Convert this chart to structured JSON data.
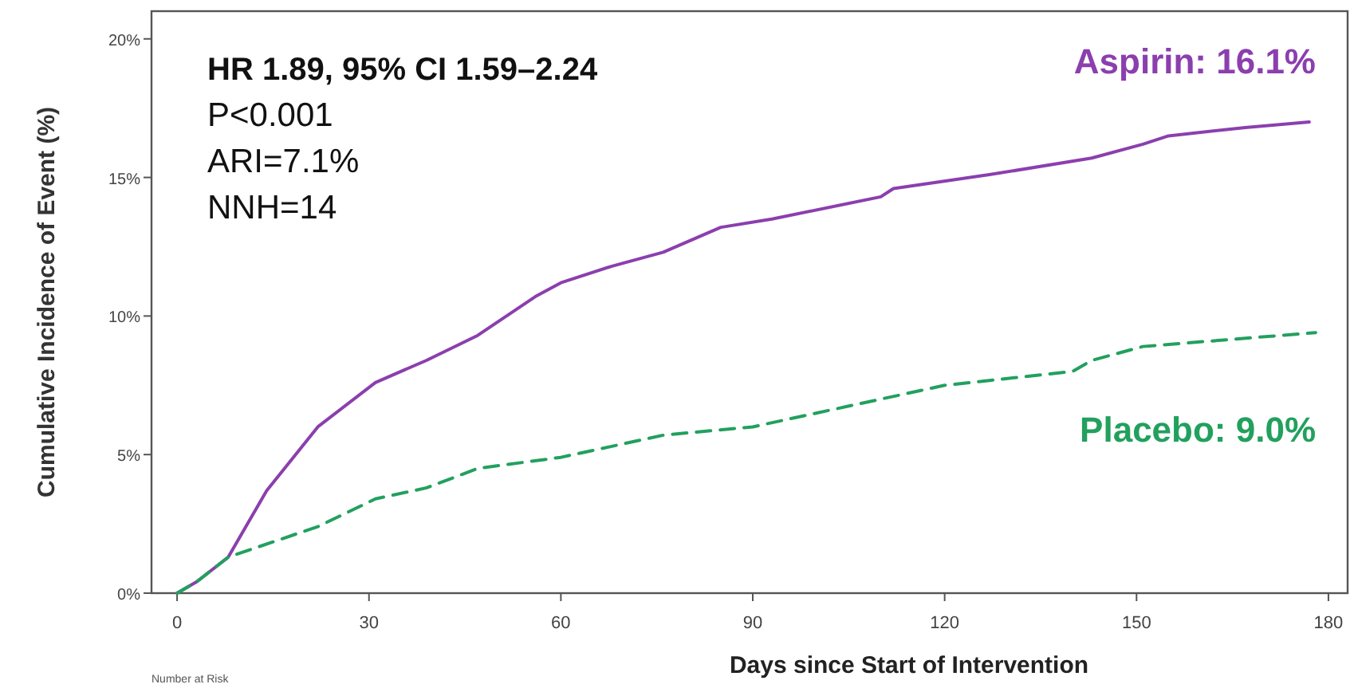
{
  "chart_data": {
    "type": "line",
    "xlabel": "Days since Start of Intervention",
    "ylabel": "Cumulative Incidence of Event (%)",
    "xlim": [
      -4,
      183
    ],
    "ylim": [
      0,
      21
    ],
    "xticks": [
      0,
      30,
      60,
      90,
      120,
      150,
      180
    ],
    "yticks": [
      {
        "value": 0,
        "label": "0%"
      },
      {
        "value": 5,
        "label": "5%"
      },
      {
        "value": 10,
        "label": "10%"
      },
      {
        "value": 15,
        "label": "15%"
      },
      {
        "value": 20,
        "label": "20%"
      }
    ],
    "grid": false,
    "annotations": [
      "HR 1.89, 95% CI 1.59–2.24",
      "P<0.001",
      "ARI=7.1%",
      "NNH=14",
      "Number at Risk"
    ],
    "series": [
      {
        "name": "Aspirin: 16.1%",
        "color": "#8b3fae",
        "line_style": "solid",
        "x": [
          0,
          3,
          8,
          14,
          22,
          31,
          39,
          47,
          56,
          60,
          68,
          76,
          85,
          93,
          110,
          112,
          127,
          143,
          151,
          155,
          167,
          177
        ],
        "values": [
          0,
          0.4,
          1.3,
          3.7,
          6.0,
          7.6,
          8.4,
          9.3,
          10.7,
          11.2,
          11.8,
          12.3,
          13.2,
          13.5,
          14.3,
          14.6,
          15.1,
          15.7,
          16.2,
          16.5,
          16.8,
          17.0
        ]
      },
      {
        "name": "Placebo: 9.0%",
        "color": "#22a05e",
        "line_style": "dashed",
        "x": [
          0,
          3,
          8,
          22,
          31,
          39,
          47,
          60,
          76,
          90,
          102,
          120,
          140,
          143,
          151,
          178
        ],
        "values": [
          0,
          0.4,
          1.3,
          2.4,
          3.4,
          3.8,
          4.5,
          4.9,
          5.7,
          6.0,
          6.6,
          7.5,
          8.0,
          8.4,
          8.9,
          9.4
        ]
      }
    ]
  }
}
